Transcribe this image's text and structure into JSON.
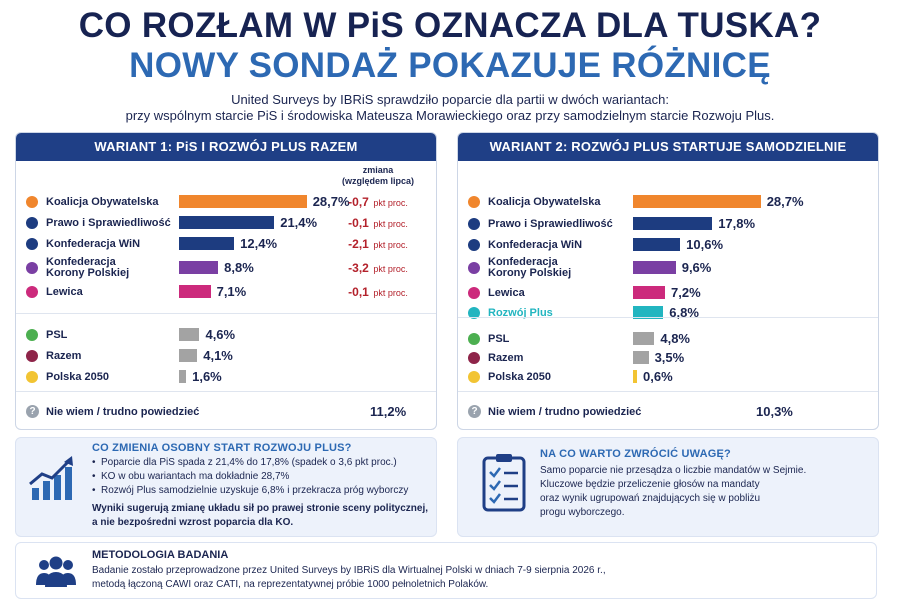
{
  "header": {
    "title_line1": "CO ROZŁAM W PiS OZNACZA DLA TUSKA?",
    "title_line2": "NOWY SONDAŻ POKAZUJE RÓŻNICĘ",
    "intro_line1": "United Surveys by IBRiS sprawdziło poparcie dla partii w dwóch wariantach:",
    "intro_line2": "przy wspólnym starcie PiS i środowiska Mateusza Morawieckiego oraz przy samodzielnym starcie Rozwoju Plus."
  },
  "chart_data": [
    {
      "type": "bar",
      "title": "WARIANT 1: PiS I ROZWÓJ PLUS RAZEM",
      "change_header_line1": "zmiana",
      "change_header_line2": "(względem lipca)",
      "change_unit": "pkt proc.",
      "unit": "%",
      "categories": [
        "Koalicja Obywatelska",
        "Prawo i Sprawiedliwość",
        "Konfederacja WiN",
        "Konfederacja Korony Polskiej",
        "Lewica",
        "PSL",
        "Razem",
        "Polska 2050",
        "Nie wiem / trudno powiedzieć"
      ],
      "values": [
        28.7,
        21.4,
        12.4,
        8.8,
        7.1,
        4.6,
        4.1,
        1.6,
        11.2
      ],
      "value_labels": [
        "28,7%",
        "21,4%",
        "12,4%",
        "8,8%",
        "7,1%",
        "4,6%",
        "4,1%",
        "1,6%",
        "11,2%"
      ],
      "changes": [
        -0.7,
        -0.1,
        -2.1,
        -3.2,
        -0.1
      ],
      "change_labels": [
        "-0,7",
        "-0,1",
        "-2,1",
        "-3,2",
        "-0,1"
      ],
      "colors": [
        "#f0862d",
        "#1d3c80",
        "#1d3c80",
        "#7a3fa3",
        "#cc2a7c",
        "#a3a3a3",
        "#a3a3a3",
        "#a3a3a3",
        ""
      ],
      "dot_colors": [
        "#f0862d",
        "#1d3c80",
        "#1d3c80",
        "#7a3fa3",
        "#cc2a7c",
        "#4caf50",
        "#8e2449",
        "#f2c433",
        "#9aa3ae"
      ]
    },
    {
      "type": "bar",
      "title": "WARIANT 2: ROZWÓJ PLUS STARTUJE SAMODZIELNIE",
      "unit": "%",
      "categories": [
        "Koalicja Obywatelska",
        "Prawo i Sprawiedliwość",
        "Konfederacja WiN",
        "Konfederacja Korony Polskiej",
        "Lewica",
        "Rozwój Plus",
        "PSL",
        "Razem",
        "Polska 2050",
        "Nie wiem / trudno powiedzieć"
      ],
      "values": [
        28.7,
        17.8,
        10.6,
        9.6,
        7.2,
        6.8,
        4.8,
        3.5,
        0.6,
        10.3
      ],
      "value_labels": [
        "28,7%",
        "17,8%",
        "10,6%",
        "9,6%",
        "7,2%",
        "6,8%",
        "4,8%",
        "3,5%",
        "0,6%",
        "10,3%"
      ],
      "colors": [
        "#f0862d",
        "#1d3c80",
        "#1d3c80",
        "#7a3fa3",
        "#cc2a7c",
        "#22b5c0",
        "#a3a3a3",
        "#a3a3a3",
        "#f2c433",
        ""
      ],
      "dot_colors": [
        "#f0862d",
        "#1d3c80",
        "#1d3c80",
        "#7a3fa3",
        "#cc2a7c",
        "#22b5c0",
        "#4caf50",
        "#8e2449",
        "#f2c433",
        "#9aa3ae"
      ],
      "highlight_color": "#22b5c0"
    }
  ],
  "info_left": {
    "title": "CO ZMIENIA OSOBNY START ROZWOJU PLUS?",
    "bullets": [
      "Poparcie dla PiS spada z 21,4% do 17,8% (spadek o 3,6 pkt proc.)",
      "KO w obu wariantach ma dokładnie 28,7%",
      "Rozwój Plus samodzielnie uzyskuje 6,8% i przekracza próg wyborczy"
    ],
    "conclusion_line1": "Wyniki sugerują zmianę układu sił po prawej stronie sceny politycznej,",
    "conclusion_line2": "a nie bezpośredni wzrost poparcia dla KO.",
    "icon": "rising-chart-icon"
  },
  "info_right": {
    "title": "NA CO WARTO ZWRÓCIĆ UWAGĘ?",
    "lines": [
      "Samo poparcie nie przesądza o liczbie mandatów w Sejmie.",
      "Kluczowe będzie przeliczenie głosów na mandaty",
      "oraz wynik ugrupowań znajdujących się w pobliżu",
      "progu wyborczego."
    ],
    "icon": "checklist-icon"
  },
  "methodology": {
    "title": "METODOLOGIA BADANIA",
    "line1": "Badanie zostało przeprowadzone przez United Surveys by IBRiS dla Wirtualnej Polski w dniach 7-9 sierpnia 2026 r.,",
    "line2": "metodą łączoną CAWI oraz CATI, na reprezentatywnej próbie 1000 pełnoletnich Polaków.",
    "icon": "people-icon"
  }
}
